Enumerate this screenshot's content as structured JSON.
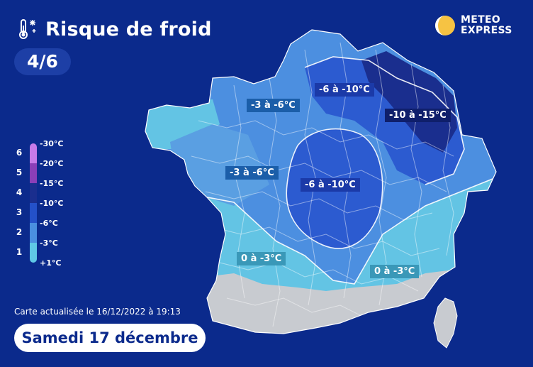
{
  "header": {
    "title": "Risque de froid",
    "level": "4/6",
    "icon": "thermometer-snow-icon"
  },
  "brand": {
    "line1": "METEO",
    "line2": "EXPRESS",
    "icon": "sun-moon-logo-icon"
  },
  "legend": {
    "levels": [
      "6",
      "5",
      "4",
      "3",
      "2",
      "1"
    ],
    "temps": [
      "-30°C",
      "-20°C",
      "-15°C",
      "-10°C",
      "-6°C",
      "-3°C",
      "+1°C"
    ],
    "colors": [
      "#c77be8",
      "#8a3fb8",
      "#1a2e8e",
      "#2451c9",
      "#4a8fe0",
      "#5fc8e6"
    ]
  },
  "zones": {
    "northwest": "-3 à -6°C",
    "west": "-3 à -6°C",
    "north_central": "-6 à -10°C",
    "central": "-6 à -10°C",
    "northeast": "-10 à -15°C",
    "southwest": "0 à -3°C",
    "southeast": "0 à -3°C"
  },
  "footer": {
    "updated": "Carte actualisée le 16/12/2022 à 19:13",
    "date": "Samedi 17 décembre"
  }
}
